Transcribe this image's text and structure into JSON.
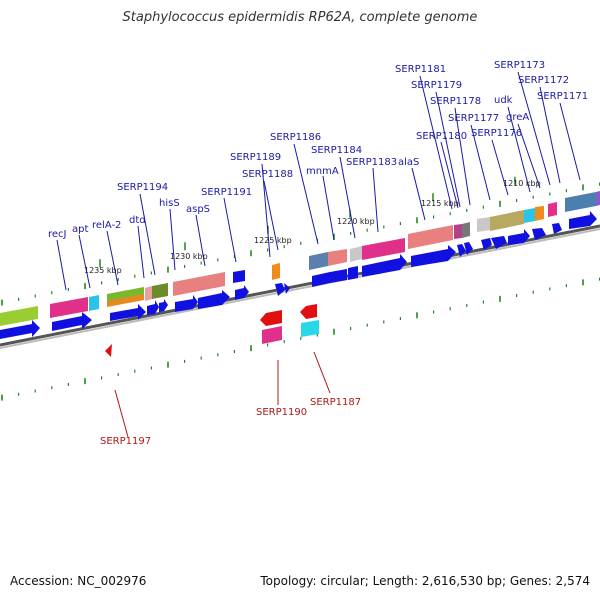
{
  "title": "Staphylococcus epidermidis RP62A, complete genome",
  "footer": {
    "accession": "Accession: NC_002976",
    "summary": "Topology: circular; Length: 2,616,530 bp; Genes: 2,574"
  },
  "colors": {
    "forward_gene": "#1010e0",
    "reverse_gene": "#e01010",
    "label_blue": "#1a1aa6",
    "label_red": "#b01818",
    "backbone": "#666666",
    "tick": "#1e8a1e"
  },
  "scale_labels": [
    "1235 kbp",
    "1230 kbp",
    "1225 kbp",
    "1220 kbp",
    "1215 kbp",
    "1210 kbp"
  ],
  "forward_labels": [
    "recJ",
    "apt",
    "relA-2",
    "dtd",
    "SERP1194",
    "hisS",
    "aspS",
    "SERP1191",
    "SERP1189",
    "SERP1188",
    "SERP1186",
    "mnmA",
    "SERP1184",
    "SERP1183",
    "alaS",
    "SERP1181",
    "SERP1179",
    "SERP1180",
    "SERP1178",
    "SERP1177",
    "SERP1176",
    "udk",
    "greA",
    "SERP1173",
    "SERP1172",
    "SERP1171"
  ],
  "reverse_labels": [
    "SERP1197",
    "SERP1190",
    "SERP1187"
  ]
}
